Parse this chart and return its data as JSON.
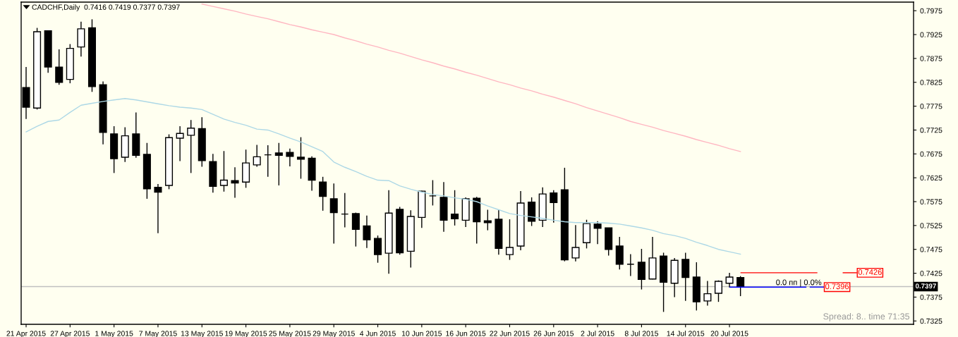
{
  "chart_data": {
    "type": "candlestick",
    "title": "CADCHF,Daily  0.7416 0.7419 0.7377 0.7397",
    "categories": [
      "21 Apr 2015",
      null,
      null,
      null,
      "27 Apr 2015",
      null,
      null,
      null,
      "1 May 2015",
      null,
      null,
      null,
      "7 May 2015",
      null,
      null,
      null,
      "13 May 2015",
      null,
      null,
      null,
      "19 May 2015",
      null,
      null,
      null,
      "25 May 2015",
      null,
      null,
      null,
      "29 May 2015",
      null,
      null,
      null,
      "4 Jun 2015",
      null,
      null,
      null,
      "10 Jun 2015",
      null,
      null,
      null,
      "16 Jun 2015",
      null,
      null,
      null,
      "22 Jun 2015",
      null,
      null,
      null,
      "26 Jun 2015",
      null,
      null,
      null,
      "2 Jul 2015",
      null,
      null,
      null,
      "8 Jul 2015",
      null,
      null,
      null,
      "14 Jul 2015",
      null,
      null,
      null,
      "20 Jul 2015",
      null
    ],
    "ohlc": [
      [
        0.7814,
        0.7857,
        0.7748,
        0.7773
      ],
      [
        0.7771,
        0.7939,
        0.7768,
        0.7931
      ],
      [
        0.7933,
        0.7933,
        0.7845,
        0.7857
      ],
      [
        0.7857,
        0.7894,
        0.782,
        0.7825
      ],
      [
        0.7831,
        0.7905,
        0.7823,
        0.7896
      ],
      [
        0.7899,
        0.7952,
        0.7879,
        0.7937
      ],
      [
        0.7939,
        0.7957,
        0.7805,
        0.7816
      ],
      [
        0.782,
        0.7827,
        0.7695,
        0.772
      ],
      [
        0.7717,
        0.7733,
        0.7635,
        0.7665
      ],
      [
        0.7668,
        0.7731,
        0.7658,
        0.7713
      ],
      [
        0.7717,
        0.7762,
        0.7667,
        0.7672
      ],
      [
        0.7674,
        0.7698,
        0.7581,
        0.7602
      ],
      [
        0.7605,
        0.7612,
        0.7509,
        0.7595
      ],
      [
        0.7609,
        0.7716,
        0.7601,
        0.7709
      ],
      [
        0.7708,
        0.7733,
        0.766,
        0.7718
      ],
      [
        0.7714,
        0.7746,
        0.7635,
        0.7729
      ],
      [
        0.7728,
        0.7752,
        0.7648,
        0.7661
      ],
      [
        0.7659,
        0.7675,
        0.7594,
        0.7607
      ],
      [
        0.7609,
        0.7681,
        0.7596,
        0.762
      ],
      [
        0.7619,
        0.7647,
        0.7583,
        0.7614
      ],
      [
        0.7616,
        0.7684,
        0.7604,
        0.7656
      ],
      [
        0.7652,
        0.7694,
        0.7648,
        0.7669
      ],
      [
        0.7673,
        0.7693,
        0.7627,
        0.7673
      ],
      [
        0.7677,
        0.7698,
        0.7609,
        0.7672
      ],
      [
        0.7678,
        0.7686,
        0.7649,
        0.767
      ],
      [
        0.7668,
        0.771,
        0.7623,
        0.7664
      ],
      [
        0.7666,
        0.767,
        0.7598,
        0.762
      ],
      [
        0.7616,
        0.7627,
        0.7556,
        0.7586
      ],
      [
        0.7581,
        0.7613,
        0.7487,
        0.7552
      ],
      [
        0.7549,
        0.7593,
        0.7521,
        0.7549
      ],
      [
        0.755,
        0.7552,
        0.7481,
        0.7517
      ],
      [
        0.7524,
        0.7546,
        0.7478,
        0.7495
      ],
      [
        0.7498,
        0.7504,
        0.7447,
        0.7464
      ],
      [
        0.7467,
        0.7599,
        0.7424,
        0.7551
      ],
      [
        0.7559,
        0.7564,
        0.7464,
        0.7468
      ],
      [
        0.7471,
        0.7557,
        0.7437,
        0.7544
      ],
      [
        0.7542,
        0.7598,
        0.752,
        0.7597
      ],
      [
        0.7587,
        0.762,
        0.7567,
        0.7587
      ],
      [
        0.7584,
        0.7616,
        0.7512,
        0.7536
      ],
      [
        0.7549,
        0.7599,
        0.7525,
        0.7539
      ],
      [
        0.7536,
        0.7584,
        0.7522,
        0.7581
      ],
      [
        0.7582,
        0.7585,
        0.7487,
        0.7533
      ],
      [
        0.7535,
        0.7558,
        0.7515,
        0.7531
      ],
      [
        0.7538,
        0.7558,
        0.7464,
        0.7477
      ],
      [
        0.7464,
        0.7538,
        0.7453,
        0.7479
      ],
      [
        0.7482,
        0.7597,
        0.7473,
        0.7572
      ],
      [
        0.7574,
        0.7584,
        0.7524,
        0.7534
      ],
      [
        0.7536,
        0.7605,
        0.7522,
        0.7591
      ],
      [
        0.7593,
        0.7599,
        0.7531,
        0.7573
      ],
      [
        0.76,
        0.7646,
        0.745,
        0.7453
      ],
      [
        0.7457,
        0.7526,
        0.745,
        0.7479
      ],
      [
        0.7489,
        0.7537,
        0.7477,
        0.7529
      ],
      [
        0.7528,
        0.7534,
        0.7486,
        0.7519
      ],
      [
        0.752,
        0.752,
        0.7462,
        0.7475
      ],
      [
        0.7482,
        0.7501,
        0.7433,
        0.7444
      ],
      [
        0.7444,
        0.7465,
        0.7419,
        0.7444
      ],
      [
        0.7448,
        0.7476,
        0.7391,
        0.7412
      ],
      [
        0.7413,
        0.7501,
        0.7412,
        0.7457
      ],
      [
        0.7461,
        0.7468,
        0.7344,
        0.7406
      ],
      [
        0.7404,
        0.7457,
        0.7375,
        0.7452
      ],
      [
        0.7454,
        0.7468,
        0.7367,
        0.7416
      ],
      [
        0.7417,
        0.7448,
        0.7347,
        0.7365
      ],
      [
        0.7367,
        0.7409,
        0.7357,
        0.7382
      ],
      [
        0.7383,
        0.741,
        0.7365,
        0.7408
      ],
      [
        0.7404,
        0.7426,
        0.7395,
        0.7417
      ],
      [
        0.7416,
        0.7419,
        0.7377,
        0.7397
      ]
    ],
    "colors": [
      "#000000",
      "#ffffff",
      "#000000",
      "#000000",
      "#ffffff",
      "#ffffff",
      "#000000",
      "#000000",
      "#000000",
      "#ffffff",
      "#000000",
      "#000000",
      "#000000",
      "#ffffff",
      "#ffffff",
      "#ffffff",
      "#000000",
      "#000000",
      "#ffffff",
      "#000000",
      "#ffffff",
      "#ffffff",
      "#000000",
      "#000000",
      "#000000",
      "#000000",
      "#000000",
      "#000000",
      "#000000",
      "#000000",
      "#000000",
      "#000000",
      "#000000",
      "#ffffff",
      "#000000",
      "#ffffff",
      "#ffffff",
      "#000000",
      "#000000",
      "#000000",
      "#ffffff",
      "#000000",
      "#000000",
      "#000000",
      "#ffffff",
      "#ffffff",
      "#000000",
      "#ffffff",
      "#000000",
      "#000000",
      "#ffffff",
      "#ffffff",
      "#000000",
      "#000000",
      "#000000",
      "#000000",
      "#000000",
      "#ffffff",
      "#000000",
      "#ffffff",
      "#000000",
      "#000000",
      "#ffffff",
      "#ffffff",
      "#ffffff",
      "#000000"
    ],
    "series": [
      {
        "type": "line",
        "color": "#add8e6",
        "values": [
          0.7721,
          0.7733,
          0.7743,
          0.7746,
          0.7762,
          0.7777,
          0.7781,
          0.7785,
          0.7788,
          0.7791,
          0.7788,
          0.7784,
          0.778,
          0.7776,
          0.7773,
          0.7771,
          0.7768,
          0.7758,
          0.7748,
          0.7741,
          0.7735,
          0.7727,
          0.7725,
          0.7717,
          0.7708,
          0.77,
          0.769,
          0.768,
          0.7658,
          0.7647,
          0.7638,
          0.7628,
          0.762,
          0.7619,
          0.7608,
          0.7601,
          0.7595,
          0.759,
          0.7587,
          0.7583,
          0.758,
          0.7575,
          0.7566,
          0.7558,
          0.755,
          0.7546,
          0.7543,
          0.754,
          0.7536,
          0.7533,
          0.7531,
          0.7531,
          0.7531,
          0.753,
          0.7528,
          0.7524,
          0.752,
          0.7515,
          0.7508,
          0.7504,
          0.7498,
          0.749,
          0.7483,
          0.7475,
          0.747,
          0.7465
        ]
      },
      {
        "type": "line",
        "color": "#ffb6c1",
        "values": [
          null,
          null,
          null,
          null,
          null,
          null,
          null,
          null,
          null,
          null,
          null,
          null,
          null,
          null,
          null,
          null,
          0.7989,
          0.7984,
          0.7979,
          0.7974,
          0.7968,
          0.7963,
          0.7958,
          0.7952,
          0.7946,
          0.7941,
          0.7935,
          0.793,
          0.7925,
          0.7918,
          0.7912,
          0.7905,
          0.7899,
          0.7892,
          0.7886,
          0.7879,
          0.7872,
          0.7866,
          0.7859,
          0.7853,
          0.7846,
          0.784,
          0.7833,
          0.7826,
          0.782,
          0.7813,
          0.7807,
          0.78,
          0.7794,
          0.7787,
          0.778,
          0.7772,
          0.7765,
          0.7758,
          0.7751,
          0.7743,
          0.7737,
          0.7731,
          0.7724,
          0.7718,
          0.7712,
          0.7705,
          0.7699,
          0.7693,
          0.7686,
          0.768
        ]
      }
    ],
    "ylim": [
      0.7318,
      0.7993
    ],
    "yticks": [
      0.7325,
      0.7375,
      0.7425,
      0.7475,
      0.7525,
      0.7575,
      0.7625,
      0.7675,
      0.7725,
      0.7775,
      0.7825,
      0.7875,
      0.7925,
      0.7975
    ],
    "ref_lines": [
      {
        "axis": "y",
        "value": 0.7397,
        "label": "0.7397",
        "color": "#c0c0c0"
      },
      {
        "axis": "y",
        "value": 0.7426,
        "label": "0.7426",
        "color": "#ff0000"
      },
      {
        "axis": "y",
        "value": 0.7396,
        "label": "0.7396",
        "color": "#0000ff"
      }
    ],
    "annotations": [
      "0.0 пп | 0.0%",
      "Spread: 8.. time 71:35"
    ],
    "grid": false
  }
}
